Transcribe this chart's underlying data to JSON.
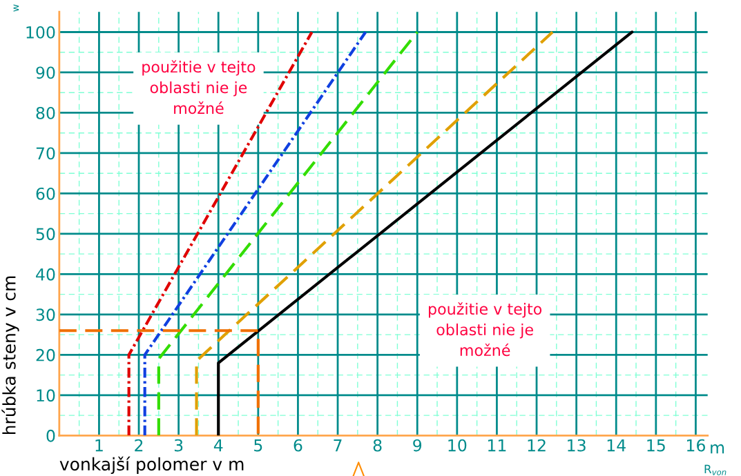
{
  "chart_data": {
    "type": "line",
    "xlabel": "vonkajší polomer v m",
    "ylabel": "hrúbka steny v cm",
    "xlim": [
      0,
      16.3
    ],
    "ylim": [
      0,
      105
    ],
    "xticks": [
      {
        "value": 0.5,
        "label": null
      },
      1,
      {
        "value": 1.5,
        "label": null
      },
      2,
      {
        "value": 2.5,
        "label": null
      },
      3,
      {
        "value": 3.5,
        "label": null
      },
      4,
      {
        "value": 4.5,
        "label": null
      },
      5,
      {
        "value": 5.5,
        "label": null
      },
      6,
      {
        "value": 6.5,
        "label": null
      },
      7,
      {
        "value": 7.5,
        "label": null
      },
      8,
      {
        "value": 8.5,
        "label": null
      },
      9,
      {
        "value": 9.5,
        "label": null
      },
      10,
      {
        "value": 10.5,
        "label": null
      },
      11,
      {
        "value": 11.5,
        "label": null
      },
      12,
      {
        "value": 12.5,
        "label": null
      },
      13,
      {
        "value": 13.5,
        "label": null
      },
      14,
      {
        "value": 14.5,
        "label": null
      },
      15,
      {
        "value": 15.5,
        "label": null
      },
      16
    ],
    "yticks": [
      0,
      {
        "value": 5,
        "label": null
      },
      10,
      {
        "value": 15,
        "label": null
      },
      20,
      {
        "value": 25,
        "label": null
      },
      30,
      {
        "value": 35,
        "label": null
      },
      40,
      {
        "value": 45,
        "label": null
      },
      50,
      {
        "value": 55,
        "label": null
      },
      60,
      {
        "value": 65,
        "label": null
      },
      70,
      {
        "value": 75,
        "label": null
      },
      80,
      {
        "value": 85,
        "label": null
      },
      90,
      {
        "value": 95,
        "label": null
      },
      100
    ],
    "grid": true,
    "marker": "none",
    "series": [
      {
        "color": "#e00000",
        "line_style": "dashdot",
        "x": [
          1.75,
          1.75,
          6.35
        ],
        "values": [
          0,
          20,
          100
        ]
      },
      {
        "color": "#1040e0",
        "line_style": "dashdot",
        "x": [
          2.15,
          2.15,
          7.7
        ],
        "values": [
          0,
          20,
          100
        ]
      },
      {
        "color": "#33dd00",
        "line_style": "dashed",
        "x": [
          2.5,
          2.5,
          9.0
        ],
        "values": [
          0,
          19,
          100
        ]
      },
      {
        "color": "#e0a000",
        "line_style": "dashed",
        "x": [
          3.45,
          3.45,
          12.4
        ],
        "values": [
          0,
          18.5,
          100
        ]
      },
      {
        "color": "#000000",
        "line_style": "solid",
        "x": [
          4.0,
          4.0,
          14.4
        ],
        "values": [
          0,
          18,
          100
        ]
      },
      {
        "color": "#f07000",
        "line_style": "dashed",
        "x": [
          0,
          5,
          5
        ],
        "values": [
          26,
          26,
          0
        ]
      }
    ],
    "annotations": [
      "použitie v tejto\noblasti nie je\nmožné",
      "použitie v tejto\noblasti nie je\nmožné",
      "w",
      "m",
      "R$_{von}$"
    ]
  }
}
